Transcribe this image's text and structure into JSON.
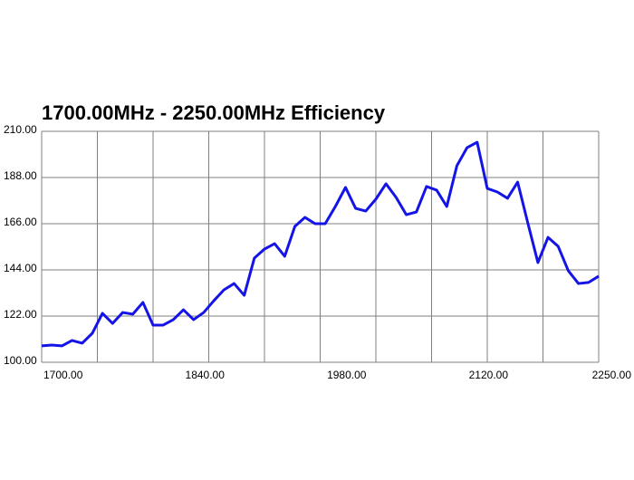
{
  "chart_data": {
    "type": "line",
    "title": "1700.00MHz - 2250.00MHz Efficiency",
    "x": [
      1700,
      1710,
      1720,
      1730,
      1740,
      1750,
      1760,
      1770,
      1780,
      1790,
      1800,
      1810,
      1820,
      1830,
      1840,
      1850,
      1860,
      1870,
      1880,
      1890,
      1900,
      1910,
      1920,
      1930,
      1940,
      1950,
      1960,
      1970,
      1980,
      1990,
      2000,
      2010,
      2020,
      2030,
      2040,
      2050,
      2060,
      2070,
      2080,
      2090,
      2100,
      2110,
      2120,
      2130,
      2140,
      2150,
      2160,
      2170,
      2180,
      2190,
      2200,
      2210,
      2220,
      2230,
      2240,
      2250
    ],
    "series": [
      {
        "color": "#1414e6",
        "values": [
          107.8,
          108.2,
          107.8,
          110.4,
          109.1,
          113.8,
          123.3,
          118.5,
          123.7,
          122.9,
          128.5,
          117.7,
          117.7,
          120.3,
          125.0,
          120.3,
          123.7,
          129.3,
          134.5,
          137.5,
          131.9,
          149.6,
          153.9,
          156.5,
          150.5,
          164.7,
          169.0,
          166.0,
          166.0,
          174.2,
          183.3,
          173.3,
          172.0,
          177.7,
          185.0,
          178.5,
          170.3,
          171.6,
          183.7,
          182.0,
          174.2,
          193.6,
          202.2,
          204.8,
          182.8,
          181.1,
          178.1,
          185.8,
          166.4,
          147.5,
          159.5,
          155.2,
          143.6,
          137.5,
          138.0,
          141.0
        ]
      }
    ],
    "xlim": [
      1700,
      2250
    ],
    "xticks": [
      {
        "value": 1700,
        "label": "1700.00"
      },
      {
        "value": 1840,
        "label": "1840.00"
      },
      {
        "value": 1980,
        "label": "1980.00"
      },
      {
        "value": 2120,
        "label": "2120.00"
      },
      {
        "value": 2250,
        "label": "2250.00"
      }
    ],
    "xgrid": [
      1700,
      1755,
      1810,
      1865,
      1920,
      1975,
      2030,
      2085,
      2140,
      2195,
      2250
    ],
    "ylim": [
      100,
      210
    ],
    "yticks": [
      {
        "value": 100,
        "label": "100.00"
      },
      {
        "value": 122,
        "label": "122.00"
      },
      {
        "value": 144,
        "label": "144.00"
      },
      {
        "value": 166,
        "label": "166.00"
      },
      {
        "value": 188,
        "label": "188.00"
      },
      {
        "value": 210,
        "label": "210.00"
      }
    ],
    "grid": true
  }
}
